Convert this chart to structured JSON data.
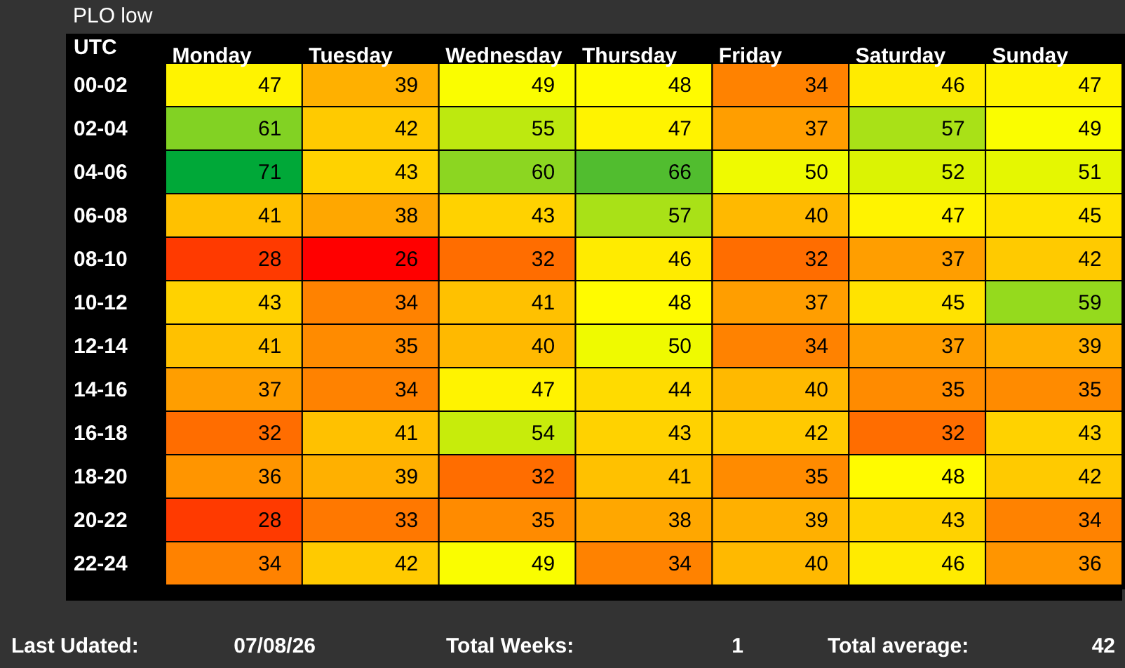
{
  "chart_data": {
    "type": "heatmap",
    "title": "PLO low",
    "ylabel": "UTC",
    "categories": [
      "Monday",
      "Tuesday",
      "Wednesday",
      "Thursday",
      "Friday",
      "Saturday",
      "Sunday"
    ],
    "y_categories": [
      "00-02",
      "02-04",
      "04-06",
      "06-08",
      "08-10",
      "10-12",
      "12-14",
      "14-16",
      "16-18",
      "18-20",
      "20-22",
      "22-24"
    ],
    "cells": [
      [
        47,
        39,
        49,
        48,
        34,
        46,
        47
      ],
      [
        61,
        42,
        55,
        47,
        37,
        57,
        49
      ],
      [
        71,
        43,
        60,
        66,
        50,
        52,
        51
      ],
      [
        41,
        38,
        43,
        57,
        40,
        47,
        45
      ],
      [
        28,
        26,
        32,
        46,
        32,
        37,
        42
      ],
      [
        43,
        34,
        41,
        48,
        37,
        45,
        59
      ],
      [
        41,
        35,
        40,
        50,
        34,
        37,
        39
      ],
      [
        37,
        34,
        47,
        44,
        40,
        35,
        35
      ],
      [
        32,
        41,
        54,
        43,
        42,
        32,
        43
      ],
      [
        36,
        39,
        32,
        41,
        35,
        48,
        42
      ],
      [
        28,
        33,
        35,
        38,
        39,
        43,
        34
      ],
      [
        34,
        42,
        49,
        34,
        40,
        46,
        36
      ]
    ],
    "data_labels": true,
    "annotations": [
      "Last Udated:",
      "07/08/26",
      "Total Weeks:",
      "1",
      "Total average:",
      "42"
    ]
  }
}
